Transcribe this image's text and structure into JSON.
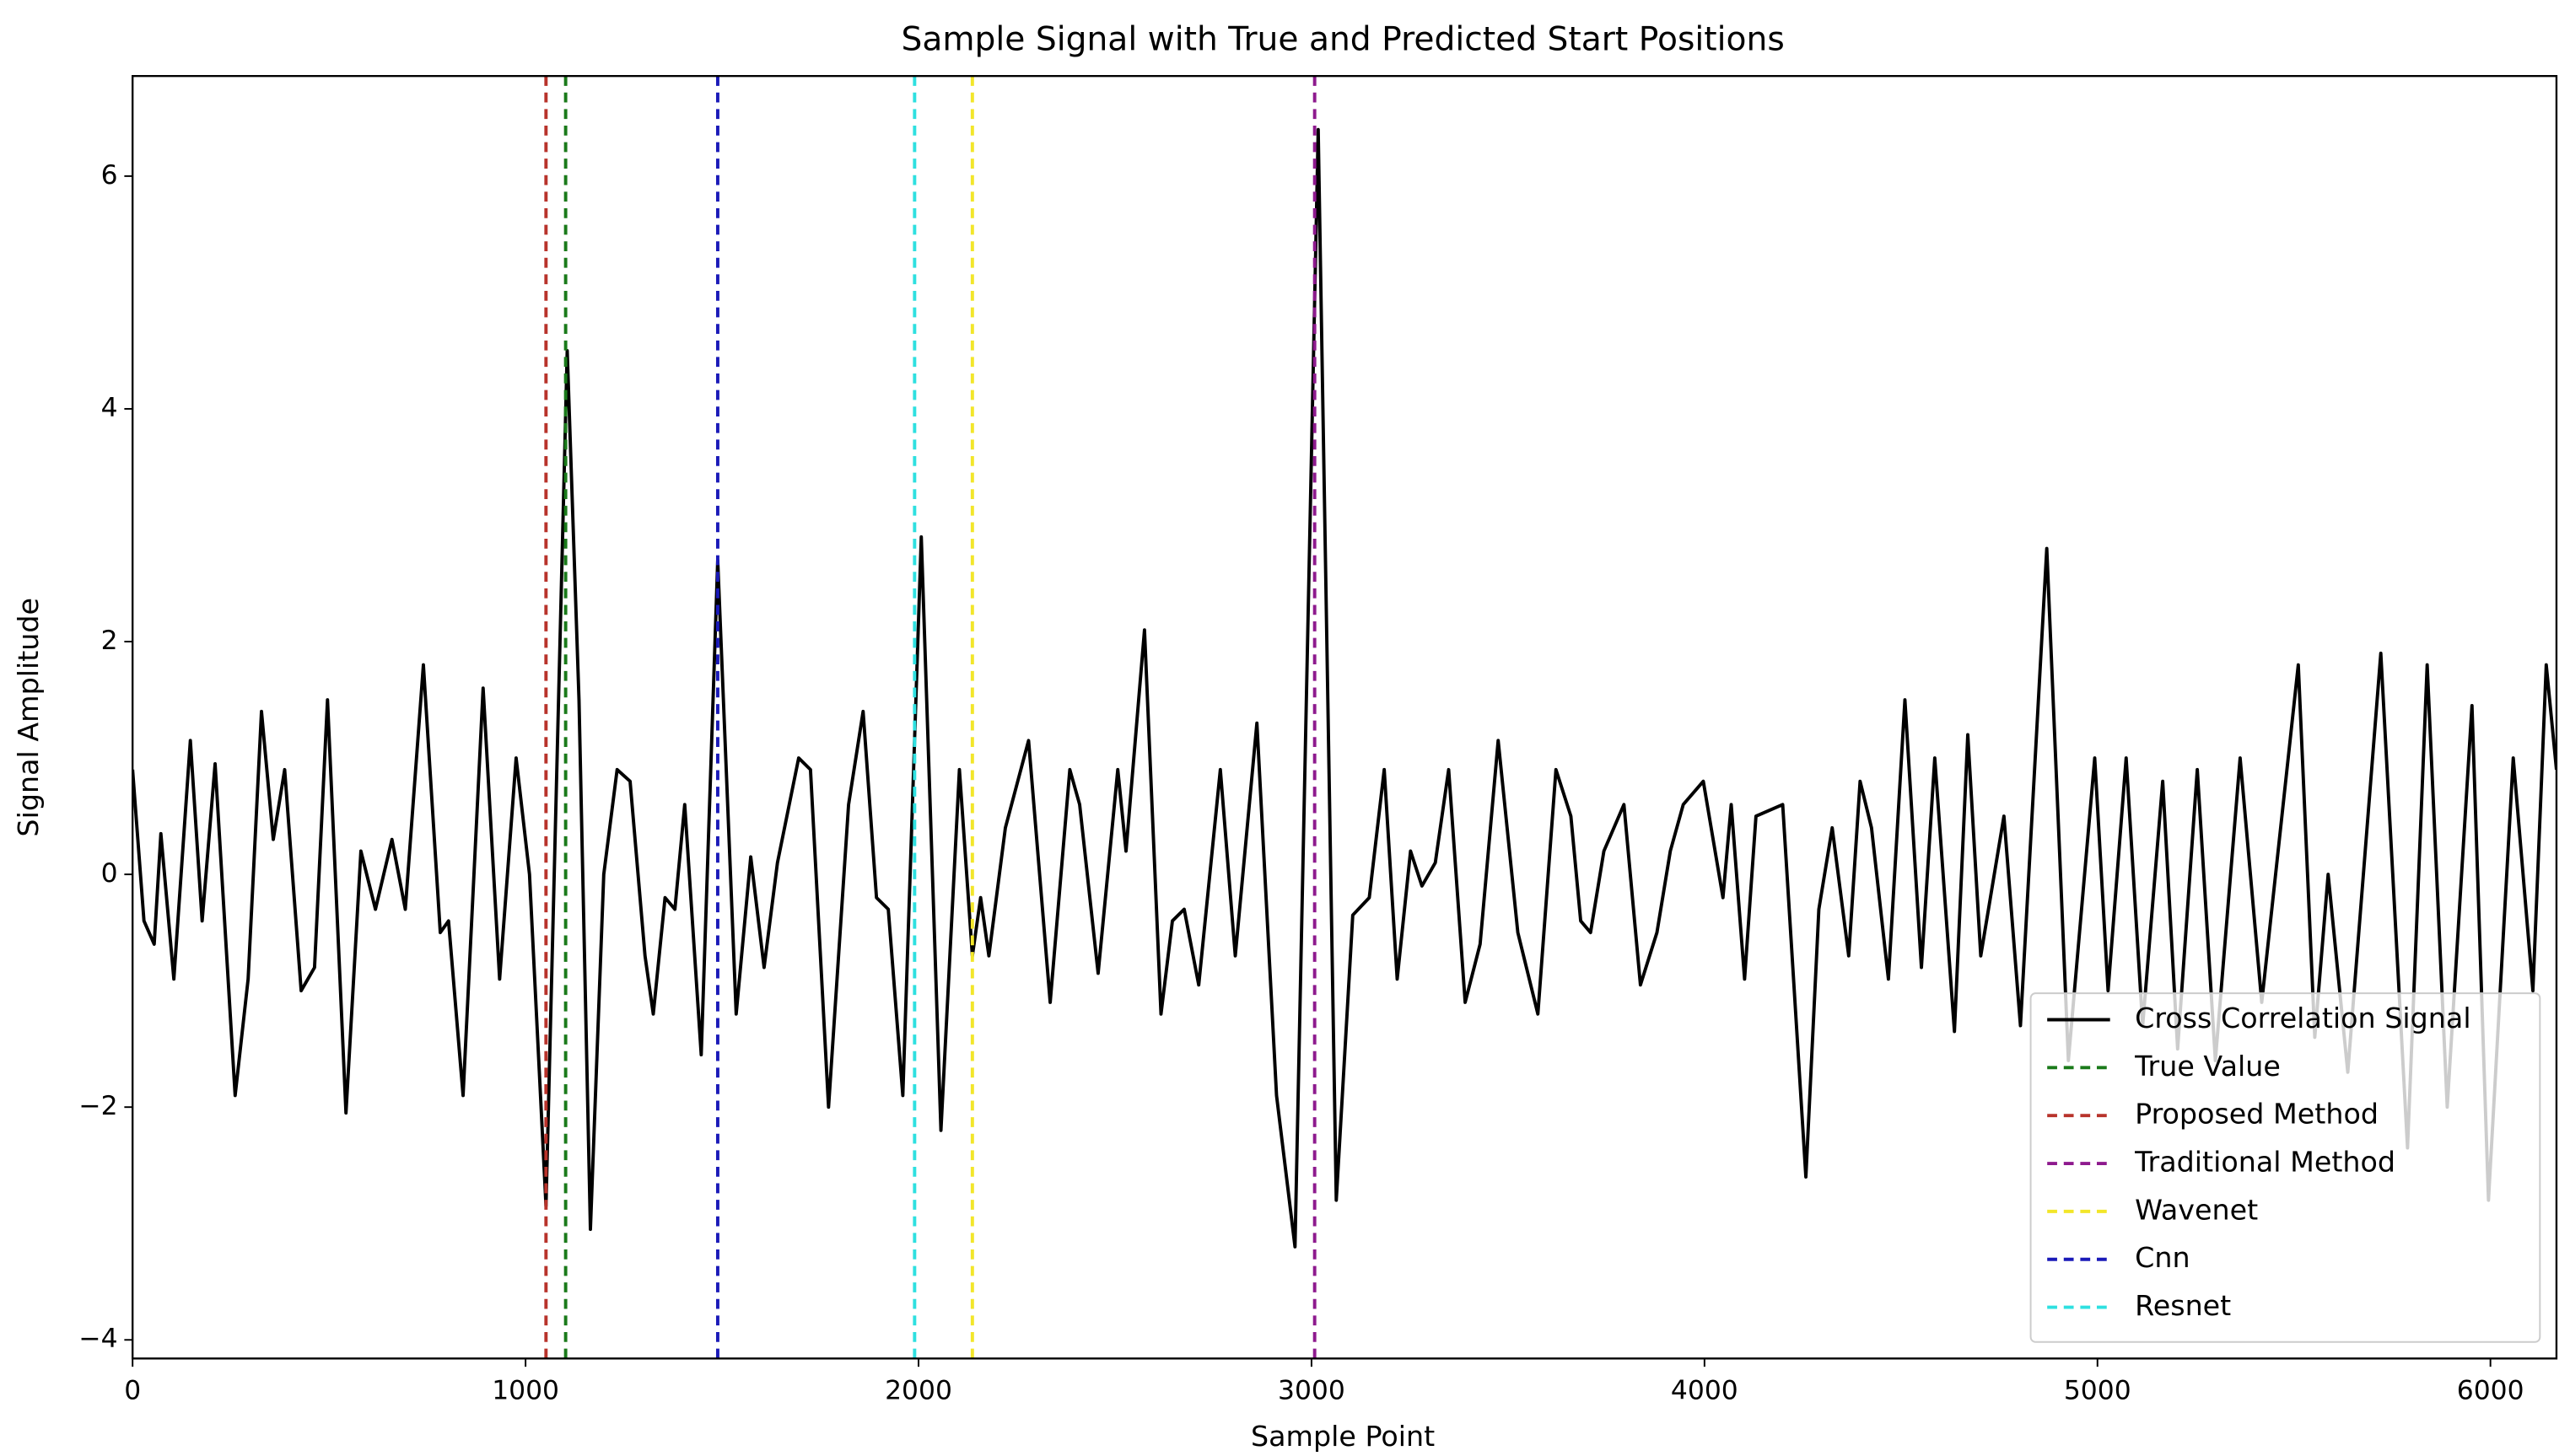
{
  "chart_data": {
    "type": "line",
    "title": "Sample Signal with True and Predicted Start Positions",
    "xlabel": "Sample Point",
    "ylabel": "Signal Amplitude",
    "xlim": [
      0,
      6168
    ],
    "ylim": [
      -4.16,
      6.86
    ],
    "xticks": [
      0,
      1000,
      2000,
      3000,
      4000,
      5000,
      6000
    ],
    "yticks": [
      {
        "value": -4,
        "label": "−4"
      },
      {
        "value": -2,
        "label": "−2"
      },
      0,
      2,
      4,
      6
    ],
    "legend": "lower right",
    "x": [
      0,
      29,
      55,
      72,
      105,
      147,
      177,
      210,
      261,
      294,
      328,
      358,
      387,
      429,
      463,
      496,
      543,
      581,
      618,
      660,
      694,
      740,
      783,
      804,
      841,
      892,
      934,
      976,
      1010,
      1052,
      1106,
      1136,
      1165,
      1199,
      1233,
      1266,
      1304,
      1325,
      1355,
      1380,
      1405,
      1447,
      1489,
      1536,
      1573,
      1607,
      1641,
      1695,
      1725,
      1771,
      1822,
      1859,
      1893,
      1923,
      1960,
      2007,
      2057,
      2104,
      2137,
      2158,
      2179,
      2221,
      2280,
      2335,
      2385,
      2410,
      2457,
      2507,
      2528,
      2575,
      2617,
      2646,
      2676,
      2713,
      2768,
      2806,
      2861,
      2911,
      2958,
      3017,
      3063,
      3105,
      3147,
      3185,
      3218,
      3252,
      3281,
      3315,
      3349,
      3391,
      3429,
      3475,
      3525,
      3576,
      3622,
      3660,
      3685,
      3710,
      3744,
      3795,
      3837,
      3879,
      3913,
      3946,
      3997,
      4047,
      4068,
      4102,
      4131,
      4199,
      4258,
      4291,
      4325,
      4367,
      4396,
      4425,
      4468,
      4510,
      4552,
      4586,
      4636,
      4670,
      4703,
      4762,
      4804,
      4871,
      4926,
      4993,
      5027,
      5073,
      5115,
      5166,
      5204,
      5254,
      5300,
      5363,
      5418,
      5511,
      5553,
      5587,
      5637,
      5721,
      5789,
      5839,
      5890,
      5953,
      5995,
      6058,
      6108,
      6142,
      6168
    ],
    "series": [
      {
        "name": "Cross Correlation Signal",
        "color": "#000000",
        "values": [
          0.9,
          -0.4,
          -0.6,
          0.35,
          -0.9,
          1.15,
          -0.4,
          0.95,
          -1.9,
          -0.9,
          1.4,
          0.3,
          0.9,
          -1.0,
          -0.8,
          1.5,
          -2.05,
          0.2,
          -0.3,
          0.3,
          -0.3,
          1.8,
          -0.5,
          -0.4,
          -1.9,
          1.6,
          -0.9,
          1.0,
          0.0,
          -2.85,
          4.5,
          1.5,
          -3.05,
          0.0,
          0.9,
          0.8,
          -0.7,
          -1.2,
          -0.2,
          -0.3,
          0.6,
          -1.55,
          2.7,
          -1.2,
          0.15,
          -0.8,
          0.1,
          1.0,
          0.9,
          -2.0,
          0.6,
          1.4,
          -0.2,
          -0.3,
          -1.9,
          2.9,
          -2.2,
          0.9,
          -0.7,
          -0.2,
          -0.7,
          0.4,
          1.15,
          -1.1,
          0.9,
          0.6,
          -0.85,
          0.9,
          0.2,
          2.1,
          -1.2,
          -0.4,
          -0.3,
          -0.95,
          0.9,
          -0.7,
          1.3,
          -1.9,
          -3.2,
          6.4,
          -2.8,
          -0.35,
          -0.2,
          0.9,
          -0.9,
          0.2,
          -0.1,
          0.1,
          0.9,
          -1.1,
          -0.6,
          1.15,
          -0.5,
          -1.2,
          0.9,
          0.5,
          -0.4,
          -0.5,
          0.2,
          0.6,
          -0.95,
          -0.5,
          0.2,
          0.6,
          0.8,
          -0.2,
          0.6,
          -0.9,
          0.5,
          0.6,
          -2.6,
          -0.3,
          0.4,
          -0.7,
          0.8,
          0.4,
          -0.9,
          1.5,
          -0.8,
          1.0,
          -1.35,
          1.2,
          -0.7,
          0.5,
          -1.3,
          2.8,
          -1.6,
          1.0,
          -1.0,
          1.0,
          -1.3,
          0.8,
          -1.5,
          0.9,
          -1.6,
          1.0,
          -1.1,
          1.8,
          -1.4,
          0.0,
          -1.7,
          1.9,
          -2.35,
          1.8,
          -2.0,
          1.45,
          -2.8,
          1.0,
          -1.0,
          1.8,
          0.9
        ]
      }
    ],
    "vlines": [
      {
        "name": "True Value",
        "color": "#1a7a1a",
        "x": 1102
      },
      {
        "name": "Proposed Method",
        "color": "#b8332b",
        "x": 1052
      },
      {
        "name": "Traditional Method",
        "color": "#8e1a8e",
        "x": 3008
      },
      {
        "name": "Wavenet",
        "color": "#f2e62a",
        "x": 2137
      },
      {
        "name": "Cnn",
        "color": "#1a1ab8",
        "x": 1489
      },
      {
        "name": "Resnet",
        "color": "#2ee0e0",
        "x": 1990
      }
    ]
  }
}
